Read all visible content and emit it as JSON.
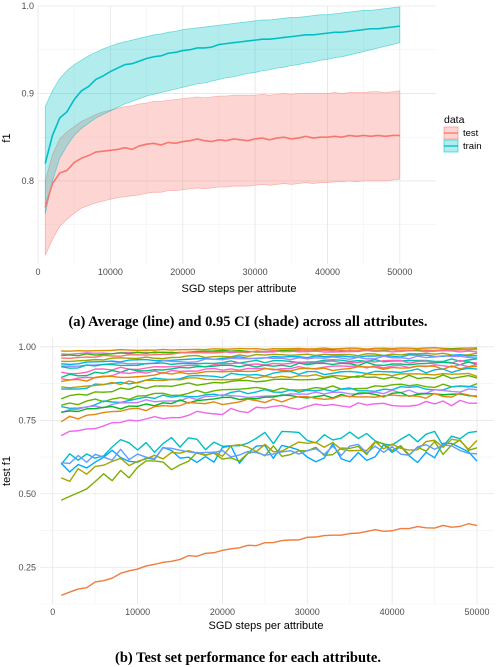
{
  "chart_data": [
    {
      "type": "line",
      "xlabel": "SGD steps per attribute",
      "ylabel": "f1",
      "xlim": [
        0,
        55000
      ],
      "ylim": [
        0.705,
        1.0
      ],
      "xticks": [
        0,
        10000,
        20000,
        30000,
        40000,
        50000
      ],
      "yticks": [
        0.8,
        0.9,
        1.0
      ],
      "ytick_labels": [
        "0.8",
        "0.9",
        "1.0"
      ],
      "grid": true,
      "legend": {
        "title": "data",
        "position": "right"
      },
      "caption": "(a) Average (line) and 0.95 CI (shade) across all attributes.",
      "x": [
        1000,
        2000,
        3000,
        4000,
        5000,
        6000,
        7000,
        8000,
        9000,
        10000,
        11000,
        12000,
        13000,
        14000,
        15000,
        16000,
        17000,
        18000,
        19000,
        20000,
        21000,
        22000,
        23000,
        24000,
        25000,
        26000,
        27000,
        28000,
        29000,
        30000,
        31000,
        32000,
        33000,
        34000,
        35000,
        36000,
        37000,
        38000,
        39000,
        40000,
        41000,
        42000,
        43000,
        44000,
        45000,
        46000,
        47000,
        48000,
        49000,
        50000
      ],
      "series": [
        {
          "name": "test",
          "color": "#f8766d",
          "mean": [
            0.77,
            0.797,
            0.809,
            0.812,
            0.821,
            0.826,
            0.829,
            0.833,
            0.834,
            0.835,
            0.836,
            0.838,
            0.836,
            0.84,
            0.842,
            0.843,
            0.841,
            0.844,
            0.843,
            0.845,
            0.846,
            0.848,
            0.846,
            0.845,
            0.847,
            0.846,
            0.848,
            0.847,
            0.846,
            0.848,
            0.849,
            0.847,
            0.849,
            0.85,
            0.848,
            0.849,
            0.851,
            0.849,
            0.85,
            0.85,
            0.851,
            0.85,
            0.852,
            0.851,
            0.852,
            0.851,
            0.852,
            0.851,
            0.852,
            0.852
          ],
          "lower": [
            0.715,
            0.733,
            0.748,
            0.756,
            0.763,
            0.769,
            0.772,
            0.775,
            0.777,
            0.779,
            0.781,
            0.782,
            0.783,
            0.784,
            0.786,
            0.787,
            0.787,
            0.789,
            0.789,
            0.79,
            0.791,
            0.792,
            0.791,
            0.792,
            0.793,
            0.793,
            0.794,
            0.794,
            0.794,
            0.795,
            0.796,
            0.795,
            0.796,
            0.797,
            0.796,
            0.797,
            0.798,
            0.797,
            0.798,
            0.798,
            0.799,
            0.799,
            0.8,
            0.799,
            0.8,
            0.8,
            0.8,
            0.8,
            0.801,
            0.802
          ],
          "upper": [
            0.8,
            0.83,
            0.848,
            0.856,
            0.862,
            0.868,
            0.872,
            0.876,
            0.879,
            0.881,
            0.883,
            0.885,
            0.886,
            0.888,
            0.889,
            0.891,
            0.891,
            0.892,
            0.893,
            0.894,
            0.895,
            0.896,
            0.895,
            0.896,
            0.897,
            0.897,
            0.898,
            0.898,
            0.898,
            0.898,
            0.899,
            0.898,
            0.899,
            0.9,
            0.899,
            0.9,
            0.9,
            0.9,
            0.9,
            0.9,
            0.901,
            0.9,
            0.901,
            0.901,
            0.901,
            0.902,
            0.902,
            0.901,
            0.902,
            0.903
          ]
        },
        {
          "name": "train",
          "color": "#00bfc4",
          "mean": [
            0.82,
            0.852,
            0.872,
            0.879,
            0.893,
            0.903,
            0.908,
            0.916,
            0.92,
            0.925,
            0.929,
            0.933,
            0.934,
            0.937,
            0.94,
            0.942,
            0.943,
            0.946,
            0.947,
            0.949,
            0.95,
            0.952,
            0.952,
            0.953,
            0.956,
            0.957,
            0.958,
            0.959,
            0.96,
            0.961,
            0.962,
            0.962,
            0.963,
            0.964,
            0.965,
            0.966,
            0.967,
            0.967,
            0.968,
            0.969,
            0.97,
            0.97,
            0.971,
            0.972,
            0.973,
            0.974,
            0.974,
            0.975,
            0.976,
            0.977
          ],
          "lower": [
            0.762,
            0.8,
            0.826,
            0.84,
            0.852,
            0.86,
            0.866,
            0.872,
            0.876,
            0.88,
            0.884,
            0.888,
            0.891,
            0.894,
            0.897,
            0.899,
            0.901,
            0.903,
            0.905,
            0.907,
            0.909,
            0.911,
            0.912,
            0.914,
            0.916,
            0.918,
            0.919,
            0.921,
            0.923,
            0.924,
            0.926,
            0.927,
            0.929,
            0.93,
            0.932,
            0.933,
            0.935,
            0.936,
            0.938,
            0.939,
            0.941,
            0.942,
            0.944,
            0.946,
            0.948,
            0.95,
            0.952,
            0.954,
            0.956,
            0.958
          ],
          "upper": [
            0.885,
            0.903,
            0.917,
            0.926,
            0.933,
            0.938,
            0.943,
            0.947,
            0.951,
            0.954,
            0.957,
            0.959,
            0.961,
            0.963,
            0.965,
            0.967,
            0.968,
            0.97,
            0.971,
            0.973,
            0.974,
            0.975,
            0.976,
            0.977,
            0.978,
            0.979,
            0.98,
            0.981,
            0.982,
            0.983,
            0.984,
            0.984,
            0.985,
            0.986,
            0.987,
            0.987,
            0.988,
            0.989,
            0.99,
            0.99,
            0.991,
            0.992,
            0.993,
            0.994,
            0.995,
            0.995,
            0.996,
            0.997,
            0.998,
            0.999
          ]
        }
      ]
    },
    {
      "type": "line",
      "xlabel": "SGD steps per attribute",
      "ylabel": "test f1",
      "xlim": [
        -1500,
        52000
      ],
      "ylim": [
        0.125,
        1.03
      ],
      "xticks": [
        0,
        10000,
        20000,
        30000,
        40000,
        50000
      ],
      "yticks": [
        0.25,
        0.5,
        0.75,
        1.0
      ],
      "ytick_labels": [
        "0.25",
        "0.50",
        "0.75",
        "1.00"
      ],
      "grid": true,
      "caption": "(b) Test set performance for each attribute.",
      "x": [
        1000,
        2000,
        3000,
        4000,
        5000,
        6000,
        7000,
        8000,
        9000,
        10000,
        11000,
        12000,
        13000,
        14000,
        15000,
        16000,
        17000,
        18000,
        19000,
        20000,
        21000,
        22000,
        23000,
        24000,
        25000,
        26000,
        27000,
        28000,
        29000,
        30000,
        31000,
        32000,
        33000,
        34000,
        35000,
        36000,
        37000,
        38000,
        39000,
        40000,
        41000,
        42000,
        43000,
        44000,
        45000,
        46000,
        47000,
        48000,
        49000,
        50000
      ],
      "series": [
        {
          "color": "#e76bf3",
          "start": 0.975,
          "end": 0.985,
          "k": 3,
          "noise": 0.003
        },
        {
          "color": "#d89000",
          "start": 0.985,
          "end": 0.995,
          "k": 3,
          "noise": 0.002
        },
        {
          "color": "#39b600",
          "start": 0.97,
          "end": 0.99,
          "k": 3,
          "noise": 0.003
        },
        {
          "color": "#f8766d",
          "start": 0.96,
          "end": 0.99,
          "k": 3,
          "noise": 0.003
        },
        {
          "color": "#a3a500",
          "start": 0.95,
          "end": 0.975,
          "k": 3,
          "noise": 0.004
        },
        {
          "color": "#00b0f6",
          "start": 0.94,
          "end": 0.97,
          "k": 3,
          "noise": 0.004
        },
        {
          "color": "#9590ff",
          "start": 0.93,
          "end": 0.965,
          "k": 3,
          "noise": 0.005
        },
        {
          "color": "#00c1a7",
          "start": 0.93,
          "end": 0.955,
          "k": 3,
          "noise": 0.005
        },
        {
          "color": "#ff62bc",
          "start": 0.91,
          "end": 0.95,
          "k": 3,
          "noise": 0.006
        },
        {
          "color": "#00bf7d",
          "start": 0.9,
          "end": 0.945,
          "k": 3,
          "noise": 0.006
        },
        {
          "color": "#fd61d1",
          "start": 0.89,
          "end": 0.935,
          "k": 3,
          "noise": 0.006
        },
        {
          "color": "#e58700",
          "start": 0.88,
          "end": 0.93,
          "k": 3,
          "noise": 0.006
        },
        {
          "color": "#00bcd8",
          "start": 0.85,
          "end": 0.92,
          "k": 3,
          "noise": 0.008
        },
        {
          "color": "#c99800",
          "start": 0.86,
          "end": 0.905,
          "k": 3,
          "noise": 0.006
        },
        {
          "color": "#5eb300",
          "start": 0.83,
          "end": 0.9,
          "k": 3,
          "noise": 0.007
        },
        {
          "color": "#6bb100",
          "start": 0.8,
          "end": 0.87,
          "k": 3,
          "noise": 0.008
        },
        {
          "color": "#00bbdb",
          "start": 0.79,
          "end": 0.86,
          "k": 3,
          "noise": 0.008
        },
        {
          "color": "#b983ff",
          "start": 0.78,
          "end": 0.85,
          "k": 3,
          "noise": 0.007
        },
        {
          "color": "#00b81f",
          "start": 0.77,
          "end": 0.84,
          "k": 3,
          "noise": 0.008
        },
        {
          "color": "#e68613",
          "start": 0.75,
          "end": 0.835,
          "k": 3,
          "noise": 0.009
        },
        {
          "color": "#ef67eb",
          "start": 0.7,
          "end": 0.81,
          "k": 3,
          "noise": 0.01
        },
        {
          "color": "#00bfc4",
          "start": 0.63,
          "end": 0.69,
          "k": 4,
          "noise": 0.03
        },
        {
          "color": "#00a9ff",
          "start": 0.6,
          "end": 0.64,
          "k": 4,
          "noise": 0.035
        },
        {
          "color": "#7cae00",
          "start": 0.5,
          "end": 0.66,
          "k": 4,
          "noise": 0.025
        },
        {
          "color": "#aba300",
          "start": 0.55,
          "end": 0.67,
          "k": 4,
          "noise": 0.02
        },
        {
          "color": "#619cff",
          "start": 0.62,
          "end": 0.65,
          "k": 4,
          "noise": 0.02
        },
        {
          "color": "#f07c3e",
          "start": 0.15,
          "end": 0.395,
          "k": 2.2,
          "noise": 0.005
        }
      ]
    }
  ]
}
